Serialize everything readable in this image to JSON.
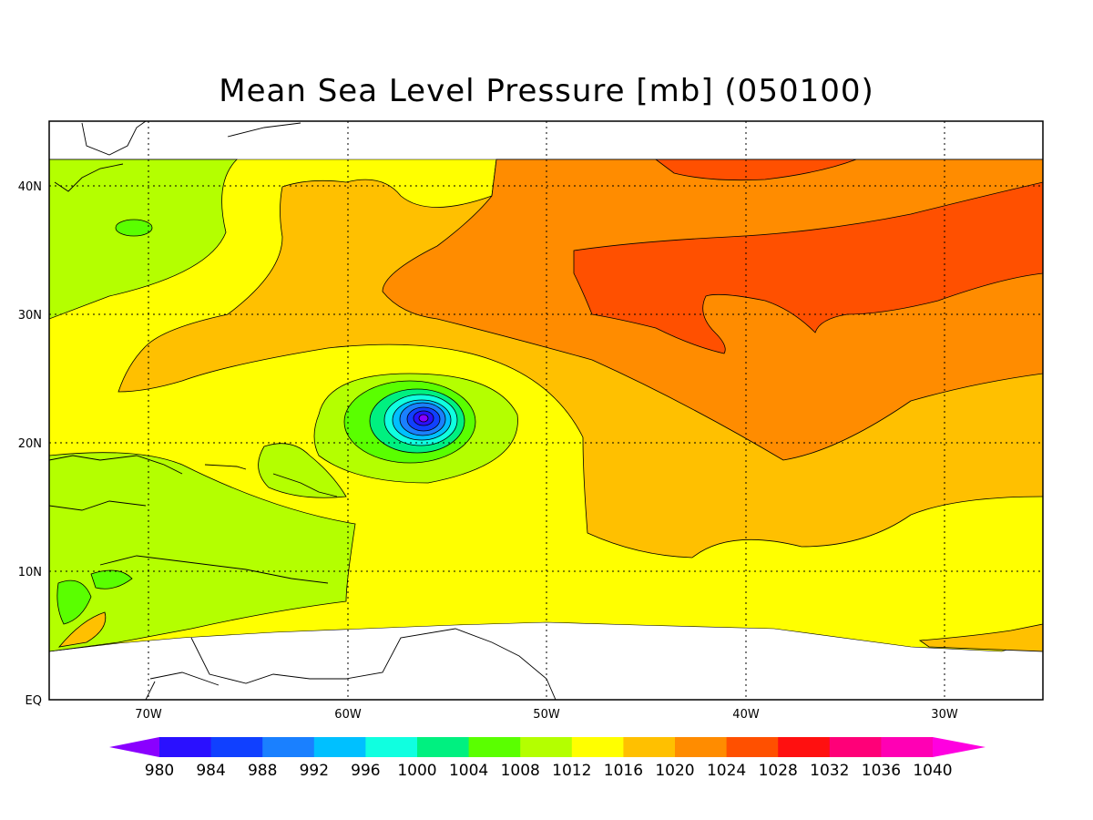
{
  "title": "Mean Sea Level Pressure [mb] (050100)",
  "map": {
    "lat_labels": [
      "40N",
      "30N",
      "20N",
      "10N",
      "EQ"
    ],
    "lon_labels": [
      "70W",
      "60W",
      "50W",
      "40W",
      "30W"
    ]
  },
  "colorbar": {
    "labels": [
      "980",
      "984",
      "988",
      "992",
      "996",
      "1000",
      "1004",
      "1008",
      "1012",
      "1016",
      "1020",
      "1024",
      "1028",
      "1032",
      "1036",
      "1040"
    ],
    "colors": [
      "#8a00ff",
      "#2a10ff",
      "#1040ff",
      "#1a80ff",
      "#00c0ff",
      "#10ffe0",
      "#00f080",
      "#5aff00",
      "#b4ff00",
      "#ffff00",
      "#ffc000",
      "#ff8c00",
      "#ff5000",
      "#ff1010",
      "#ff0078",
      "#ff00b4",
      "#ff00e0"
    ]
  }
}
